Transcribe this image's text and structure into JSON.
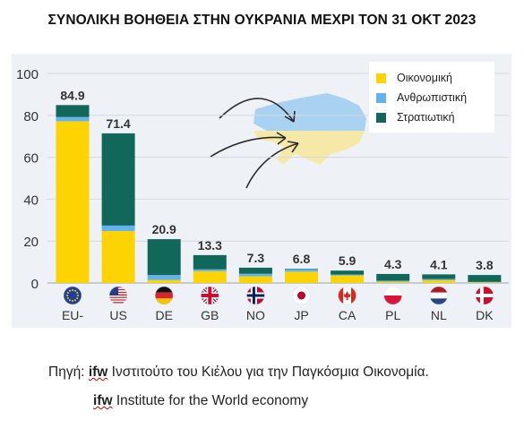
{
  "title": "ΣΥΝΟΛΙΚΗ ΒΟΗΘΕΙΑ ΣΤΗΝ ΟΥΚΡΑΝΙΑ ΜΕΧΡΙ ΤΟΝ 31 ΟΚΤ 2023",
  "colors": {
    "economic": "#fdd402",
    "humanitarian": "#62b2ee",
    "military": "#10675a",
    "panel": "#eef1f5",
    "ukraine_blue": "#a9d2f2",
    "ukraine_yellow": "#f6e9a8"
  },
  "chart_data": {
    "type": "bar",
    "stacked": true,
    "categories": [
      "EU-",
      "US",
      "DE",
      "GB",
      "NO",
      "JP",
      "CA",
      "PL",
      "NL",
      "DK"
    ],
    "flag_icons": [
      "eu-flag-icon",
      "us-flag-icon",
      "de-flag-icon",
      "gb-flag-icon",
      "no-flag-icon",
      "jp-flag-icon",
      "ca-flag-icon",
      "pl-flag-icon",
      "nl-flag-icon",
      "dk-flag-icon"
    ],
    "totals": [
      84.9,
      71.4,
      20.9,
      13.3,
      7.3,
      6.8,
      5.9,
      4.3,
      4.1,
      3.8
    ],
    "total_labels": [
      "84.9",
      "71.4",
      "20.9",
      "13.3",
      "7.3",
      "6.8",
      "5.9",
      "4.3",
      "4.1",
      "3.8"
    ],
    "series": [
      {
        "name": "Οικονομική",
        "values": [
          77.2,
          24.8,
          1.4,
          5.6,
          3.2,
          5.4,
          3.6,
          0.6,
          1.3,
          0.3
        ]
      },
      {
        "name": "Ανθρωπιστική",
        "values": [
          2.0,
          2.6,
          2.4,
          0.9,
          1.2,
          1.2,
          0.4,
          0.5,
          0.6,
          0.2
        ]
      },
      {
        "name": "Στρατιωτική",
        "values": [
          5.7,
          44.0,
          17.1,
          6.8,
          2.9,
          0.2,
          1.9,
          3.2,
          2.2,
          3.3
        ]
      }
    ],
    "ylim": [
      0,
      100
    ],
    "yticks": [
      0,
      20,
      40,
      60,
      80,
      100
    ],
    "grid": true,
    "legend_position": "top-right"
  },
  "source": {
    "prefix": "Πηγή:",
    "ifw": "ifw",
    "line1": "Ινστιτούτο του Κιέλου για την Παγκόσμια Οικονομία.",
    "line2": "Institute for the World economy"
  }
}
